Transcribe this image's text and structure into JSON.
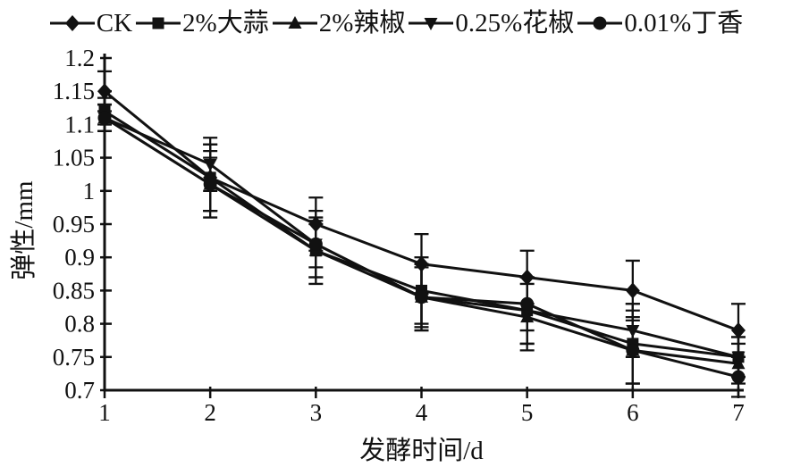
{
  "figure": {
    "ink_color": "#111111",
    "background_color": "#ffffff"
  },
  "chart_data": {
    "type": "line",
    "title": "",
    "xlabel": "发酵时间/d",
    "ylabel": "弹性/mm",
    "x": [
      1,
      2,
      3,
      4,
      5,
      6,
      7
    ],
    "xlim": [
      1,
      7
    ],
    "ylim": [
      0.7,
      1.2
    ],
    "xtick_labels": [
      "1",
      "2",
      "3",
      "4",
      "5",
      "6",
      "7"
    ],
    "ytick_values": [
      0.7,
      0.75,
      0.8,
      0.85,
      0.9,
      0.95,
      1.0,
      1.05,
      1.1,
      1.15,
      1.2
    ],
    "ytick_labels": [
      "0.7",
      "0.75",
      "0.8",
      "0.85",
      "0.9",
      "0.95",
      "1",
      "1.05",
      "1.1",
      "1.15",
      "1.2"
    ],
    "grid": false,
    "legend_position": "top",
    "error_bars": true,
    "series": [
      {
        "name": "CK",
        "marker": "diamond",
        "values": [
          1.15,
          1.02,
          0.95,
          0.89,
          0.87,
          0.85,
          0.79
        ],
        "errors": [
          0.03,
          0.05,
          0.04,
          0.045,
          0.04,
          0.045,
          0.04
        ]
      },
      {
        "name": "2%大蒜",
        "marker": "square",
        "values": [
          1.12,
          1.02,
          0.91,
          0.85,
          0.82,
          0.77,
          0.75
        ],
        "errors": [
          0.02,
          0.05,
          0.05,
          0.05,
          0.05,
          0.06,
          0.03
        ]
      },
      {
        "name": "2%辣椒",
        "marker": "triangle-up",
        "values": [
          1.11,
          1.01,
          0.91,
          0.84,
          0.81,
          0.76,
          0.74
        ],
        "errors": [
          0.02,
          0.04,
          0.04,
          0.045,
          0.05,
          0.05,
          0.03
        ]
      },
      {
        "name": "0.25%花椒",
        "marker": "triangle-down",
        "values": [
          1.11,
          1.04,
          0.92,
          0.84,
          0.82,
          0.79,
          0.75
        ],
        "errors": [
          0.02,
          0.04,
          0.035,
          0.05,
          0.05,
          0.04,
          0.03
        ]
      },
      {
        "name": "0.01%丁香",
        "marker": "circle",
        "values": [
          1.11,
          1.01,
          0.92,
          0.84,
          0.83,
          0.76,
          0.72
        ],
        "errors": [
          0.02,
          0.05,
          0.05,
          0.05,
          0.04,
          0.06,
          0.03
        ]
      }
    ]
  }
}
